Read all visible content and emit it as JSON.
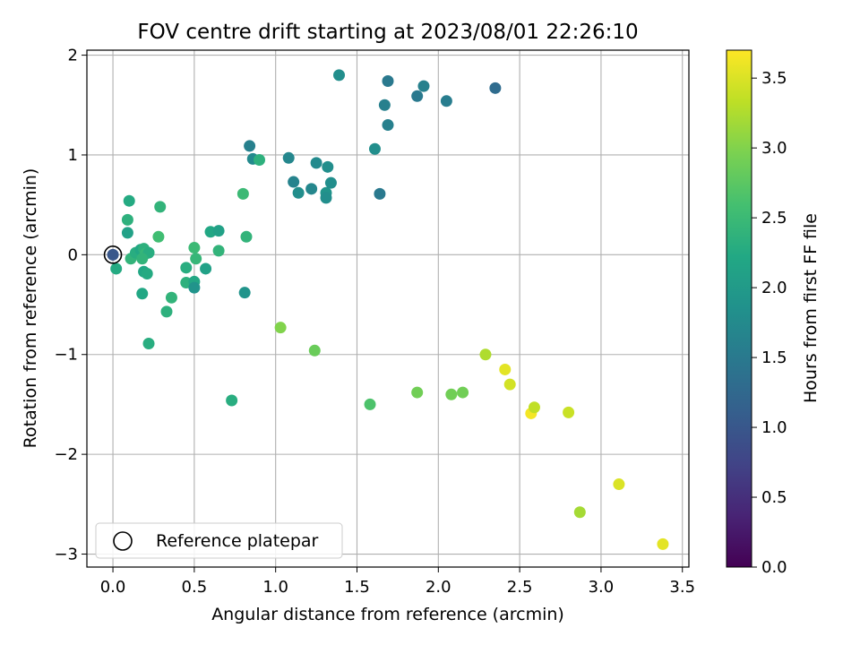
{
  "chart_data": {
    "type": "scatter",
    "title": "FOV centre drift starting at 2023/08/01 22:26:10",
    "xlabel": "Angular distance from reference (arcmin)",
    "ylabel": "Rotation from reference (arcmin)",
    "xlim": [
      -0.16,
      3.54
    ],
    "ylim": [
      -3.13,
      2.05
    ],
    "xticks": [
      0.0,
      0.5,
      1.0,
      1.5,
      2.0,
      2.5,
      3.0,
      3.5
    ],
    "xtick_labels": [
      "0.0",
      "0.5",
      "1.0",
      "1.5",
      "2.0",
      "2.5",
      "3.0",
      "3.5"
    ],
    "yticks": [
      -3,
      -2,
      -1,
      0,
      1,
      2
    ],
    "ytick_labels": [
      "−3",
      "−2",
      "−1",
      "0",
      "1",
      "2"
    ],
    "grid": true,
    "legend": {
      "position": "lower-left",
      "entries": [
        "Reference platepar"
      ]
    },
    "reference_point": {
      "x": 0.0,
      "y": 0.0,
      "label": "Reference platepar"
    },
    "colorbar": {
      "label": "Hours from first FF file",
      "colormap": "viridis",
      "range": [
        0.0,
        3.7
      ],
      "ticks": [
        0.0,
        0.5,
        1.0,
        1.5,
        2.0,
        2.5,
        3.0,
        3.5
      ],
      "tick_labels": [
        "0.0",
        "0.5",
        "1.0",
        "1.5",
        "2.0",
        "2.5",
        "3.0",
        "3.5"
      ]
    },
    "points": [
      {
        "x": 0.0,
        "y": 0.0,
        "c": 1.0
      },
      {
        "x": 0.1,
        "y": 0.54,
        "c": 2.25
      },
      {
        "x": 0.09,
        "y": 0.35,
        "c": 2.35
      },
      {
        "x": 0.09,
        "y": 0.22,
        "c": 2.1
      },
      {
        "x": 0.02,
        "y": -0.14,
        "c": 2.25
      },
      {
        "x": 0.11,
        "y": -0.04,
        "c": 2.4
      },
      {
        "x": 0.14,
        "y": 0.02,
        "c": 2.3
      },
      {
        "x": 0.17,
        "y": 0.05,
        "c": 2.2
      },
      {
        "x": 0.19,
        "y": 0.06,
        "c": 2.35
      },
      {
        "x": 0.2,
        "y": 0.01,
        "c": 2.45
      },
      {
        "x": 0.22,
        "y": 0.02,
        "c": 2.3
      },
      {
        "x": 0.18,
        "y": -0.04,
        "c": 2.4
      },
      {
        "x": 0.19,
        "y": -0.17,
        "c": 2.2
      },
      {
        "x": 0.21,
        "y": -0.19,
        "c": 2.25
      },
      {
        "x": 0.18,
        "y": -0.39,
        "c": 2.2
      },
      {
        "x": 0.22,
        "y": -0.89,
        "c": 2.3
      },
      {
        "x": 0.29,
        "y": 0.48,
        "c": 2.4
      },
      {
        "x": 0.28,
        "y": 0.18,
        "c": 2.55
      },
      {
        "x": 0.36,
        "y": -0.43,
        "c": 2.4
      },
      {
        "x": 0.33,
        "y": -0.57,
        "c": 2.35
      },
      {
        "x": 0.45,
        "y": -0.13,
        "c": 2.3
      },
      {
        "x": 0.45,
        "y": -0.28,
        "c": 2.35
      },
      {
        "x": 0.5,
        "y": 0.07,
        "c": 2.5
      },
      {
        "x": 0.51,
        "y": -0.04,
        "c": 2.45
      },
      {
        "x": 0.5,
        "y": -0.27,
        "c": 2.2
      },
      {
        "x": 0.5,
        "y": -0.33,
        "c": 1.9
      },
      {
        "x": 0.57,
        "y": -0.14,
        "c": 2.1
      },
      {
        "x": 0.6,
        "y": 0.23,
        "c": 2.2
      },
      {
        "x": 0.65,
        "y": 0.24,
        "c": 2.1
      },
      {
        "x": 0.65,
        "y": 0.04,
        "c": 2.4
      },
      {
        "x": 0.73,
        "y": -1.46,
        "c": 2.3
      },
      {
        "x": 0.8,
        "y": 0.61,
        "c": 2.5
      },
      {
        "x": 0.82,
        "y": 0.18,
        "c": 2.4
      },
      {
        "x": 0.81,
        "y": -0.38,
        "c": 1.9
      },
      {
        "x": 0.84,
        "y": 1.09,
        "c": 1.6
      },
      {
        "x": 0.86,
        "y": 0.96,
        "c": 1.75
      },
      {
        "x": 0.9,
        "y": 0.95,
        "c": 2.35
      },
      {
        "x": 1.08,
        "y": 0.97,
        "c": 1.7
      },
      {
        "x": 1.11,
        "y": 0.73,
        "c": 1.65
      },
      {
        "x": 1.14,
        "y": 0.62,
        "c": 1.8
      },
      {
        "x": 1.22,
        "y": 0.66,
        "c": 1.7
      },
      {
        "x": 1.25,
        "y": 0.92,
        "c": 1.75
      },
      {
        "x": 1.31,
        "y": 0.62,
        "c": 1.9
      },
      {
        "x": 1.31,
        "y": 0.57,
        "c": 1.8
      },
      {
        "x": 1.32,
        "y": 0.88,
        "c": 1.8
      },
      {
        "x": 1.34,
        "y": 0.72,
        "c": 1.8
      },
      {
        "x": 1.39,
        "y": 1.8,
        "c": 1.8
      },
      {
        "x": 1.03,
        "y": -0.73,
        "c": 3.0
      },
      {
        "x": 1.24,
        "y": -0.96,
        "c": 2.85
      },
      {
        "x": 1.58,
        "y": -1.5,
        "c": 2.65
      },
      {
        "x": 1.61,
        "y": 1.06,
        "c": 1.8
      },
      {
        "x": 1.64,
        "y": 0.61,
        "c": 1.5
      },
      {
        "x": 1.67,
        "y": 1.5,
        "c": 1.6
      },
      {
        "x": 1.69,
        "y": 1.74,
        "c": 1.5
      },
      {
        "x": 1.69,
        "y": 1.3,
        "c": 1.6
      },
      {
        "x": 1.87,
        "y": 1.59,
        "c": 1.5
      },
      {
        "x": 1.87,
        "y": -1.38,
        "c": 2.9
      },
      {
        "x": 1.91,
        "y": 1.69,
        "c": 1.6
      },
      {
        "x": 2.05,
        "y": 1.54,
        "c": 1.55
      },
      {
        "x": 2.08,
        "y": -1.4,
        "c": 2.9
      },
      {
        "x": 2.15,
        "y": -1.38,
        "c": 2.9
      },
      {
        "x": 2.29,
        "y": -1.0,
        "c": 3.25
      },
      {
        "x": 2.35,
        "y": 1.67,
        "c": 1.3
      },
      {
        "x": 2.41,
        "y": -1.15,
        "c": 3.55
      },
      {
        "x": 2.44,
        "y": -1.3,
        "c": 3.45
      },
      {
        "x": 2.57,
        "y": -1.59,
        "c": 3.65
      },
      {
        "x": 2.59,
        "y": -1.53,
        "c": 3.35
      },
      {
        "x": 2.8,
        "y": -1.58,
        "c": 3.4
      },
      {
        "x": 2.87,
        "y": -2.58,
        "c": 3.2
      },
      {
        "x": 3.11,
        "y": -2.3,
        "c": 3.5
      },
      {
        "x": 3.38,
        "y": -2.9,
        "c": 3.55
      }
    ]
  }
}
